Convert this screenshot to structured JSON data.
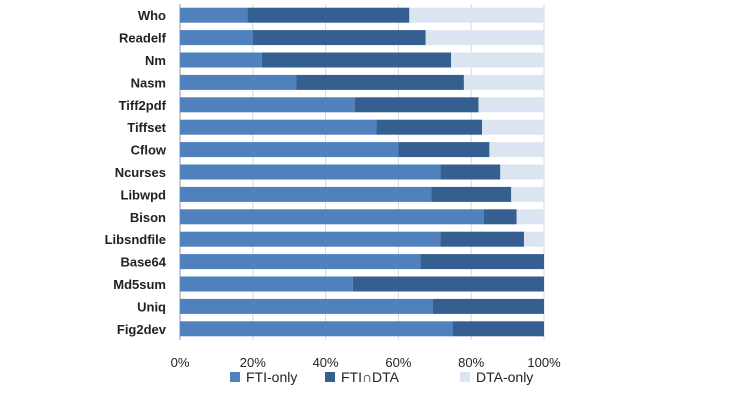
{
  "chart_data": {
    "type": "bar",
    "orientation": "horizontal",
    "stacked": true,
    "title": "",
    "xlabel": "",
    "ylabel": "",
    "xlim": [
      0,
      100
    ],
    "grid": true,
    "legend_position": "bottom",
    "x_ticks": [
      "0%",
      "20%",
      "40%",
      "60%",
      "80%",
      "100%"
    ],
    "categories": [
      "Who",
      "Readelf",
      "Nm",
      "Nasm",
      "Tiff2pdf",
      "Tiffset",
      "Cflow",
      "Ncurses",
      "Libwpd",
      "Bison",
      "Libsndfile",
      "Base64",
      "Md5sum",
      "Uniq",
      "Fig2dev"
    ],
    "series": [
      {
        "name": "FTI-only",
        "color": "#4f81bd",
        "values": [
          18.5,
          20,
          22.5,
          32,
          48,
          54,
          60,
          71.5,
          69,
          83.5,
          71.5,
          66,
          47.5,
          69.5,
          75
        ]
      },
      {
        "name": "FTI∩DTA",
        "color": "#365f91",
        "values": [
          44.5,
          47.5,
          52,
          46,
          34,
          29,
          25,
          16.5,
          22,
          9,
          23,
          34,
          52.5,
          30.5,
          25
        ]
      },
      {
        "name": "DTA-only",
        "color": "#dbe5f1",
        "values": [
          37,
          32.5,
          25.5,
          22,
          18,
          17,
          15,
          12,
          9,
          7.5,
          5.5,
          0,
          0,
          0,
          0
        ]
      }
    ]
  }
}
